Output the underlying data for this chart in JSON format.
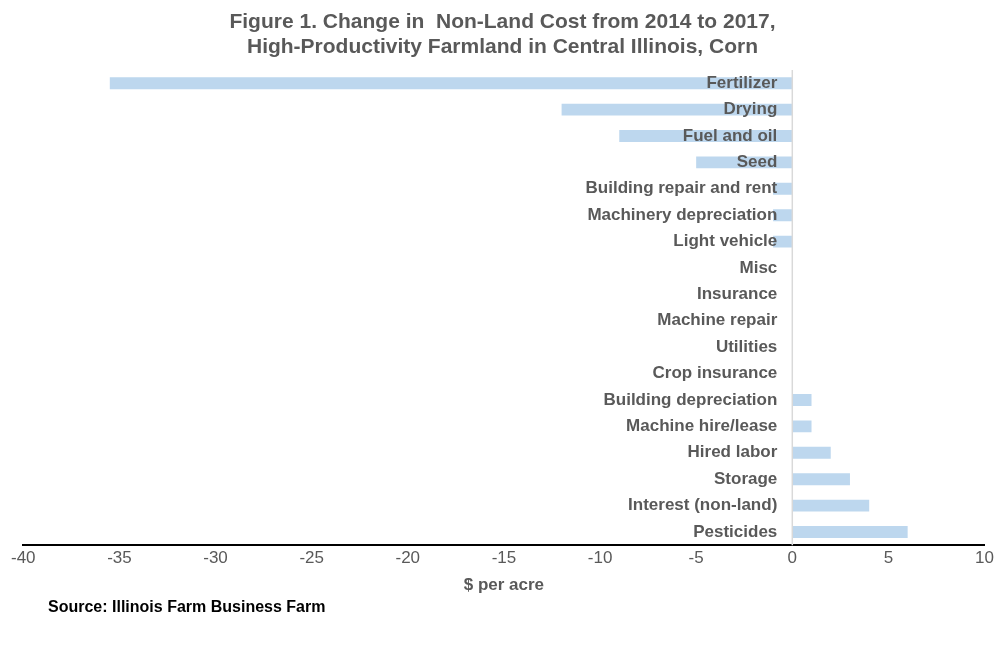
{
  "chart_data": {
    "type": "bar",
    "orientation": "horizontal",
    "title": "Figure 1. Change in  Non-Land Cost from 2014 to 2017,\nHigh-Productivity Farmland in Central Illinois, Corn",
    "xlabel": "$ per acre",
    "categories": [
      "Fertilizer",
      "Drying",
      "Fuel and oil",
      "Seed",
      "Building repair and rent",
      "Machinery depreciation",
      "Light vehicle",
      "Misc",
      "Insurance",
      "Machine repair",
      "Utilities",
      "Crop insurance",
      "Building depreciation",
      "Machine hire/lease",
      "Hired labor",
      "Storage",
      "Interest (non-land)",
      "Pesticides"
    ],
    "values": [
      -35.5,
      -12,
      -9,
      -5,
      -1,
      -1,
      -1,
      0,
      0,
      0,
      0,
      0,
      1,
      1,
      2,
      3,
      4,
      6
    ],
    "color": "#bdd7ee",
    "xlim": [
      -40,
      10
    ],
    "xticks": [
      -40,
      -35,
      -30,
      -25,
      -20,
      -15,
      -10,
      -5,
      0,
      5,
      10
    ],
    "grid": false,
    "annotations": [
      "Source: Illinois Farm Business Farm"
    ]
  }
}
